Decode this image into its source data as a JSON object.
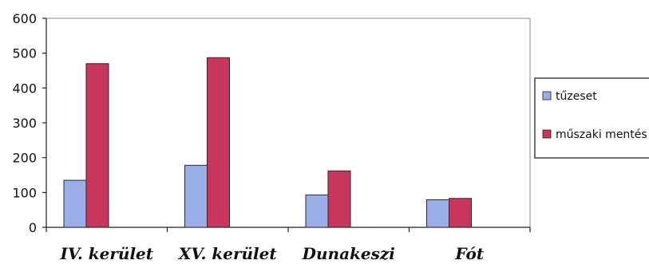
{
  "chart_data": {
    "type": "bar",
    "categories": [
      "IV. kerület",
      "XV. kerület",
      "Dunakeszi",
      "Fót"
    ],
    "series": [
      {
        "name": "tűzeset",
        "values": [
          135,
          178,
          93,
          79
        ],
        "color": "#9aaee8"
      },
      {
        "name": "műszaki mentés",
        "values": [
          470,
          487,
          162,
          83
        ],
        "color": "#c8365e"
      }
    ],
    "ylim": [
      0,
      600
    ],
    "yticks": [
      0,
      100,
      200,
      300,
      400,
      500,
      600
    ],
    "grid": false,
    "legend_position": "right"
  }
}
